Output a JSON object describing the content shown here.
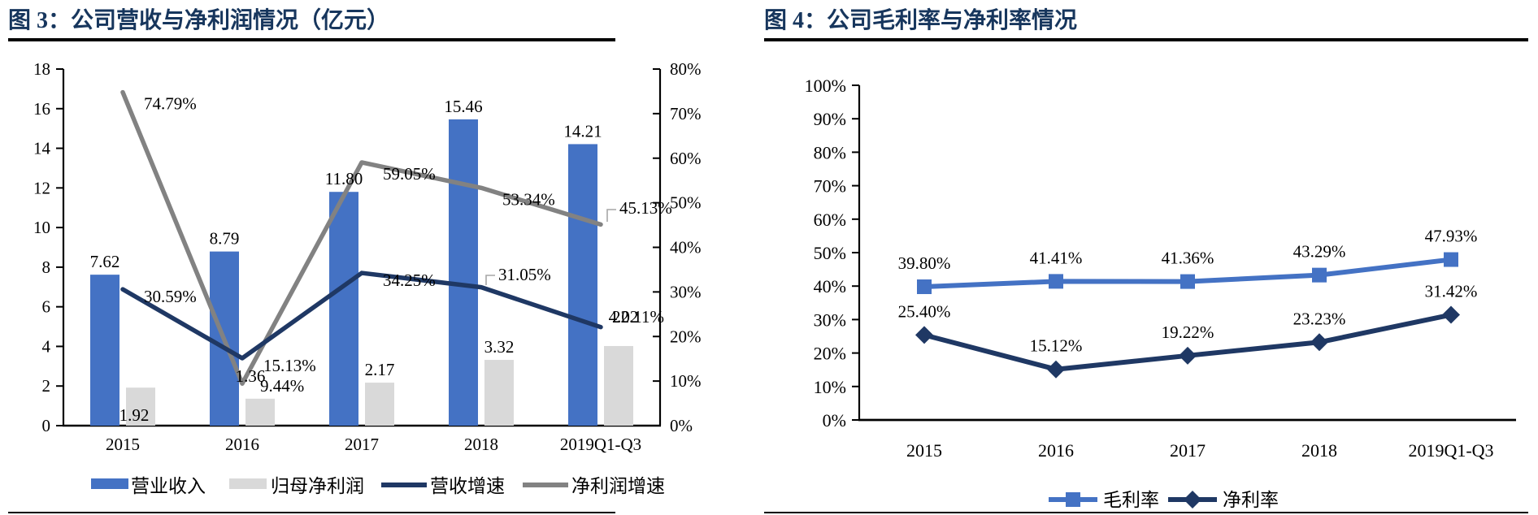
{
  "chart_data": [
    {
      "type": "bar",
      "title": "图 3：公司营收与净利润情况（亿元）",
      "categories": [
        "2015",
        "2016",
        "2017",
        "2018",
        "2019Q1-Q3"
      ],
      "bar_series": [
        {
          "name": "营业收入",
          "color": "#4472C4",
          "values": [
            7.62,
            8.79,
            11.8,
            15.46,
            14.21
          ],
          "labels": [
            "7.62",
            "8.79",
            "11.80",
            "15.46",
            "14.21"
          ]
        },
        {
          "name": "归母净利润",
          "color": "#D9D9D9",
          "values": [
            1.92,
            1.36,
            2.17,
            3.32,
            4.02
          ],
          "labels": [
            "1.92",
            "1.36",
            "2.17",
            "3.32",
            "4.02"
          ]
        }
      ],
      "line_series": [
        {
          "name": "营收增速",
          "color": "#1F3864",
          "values": [
            30.59,
            15.13,
            34.25,
            31.05,
            22.11
          ],
          "labels": [
            "30.59%",
            "15.13%",
            "34.25%",
            "31.05%",
            "22.11%"
          ]
        },
        {
          "name": "净利润增速",
          "color": "#828282",
          "values": [
            74.79,
            9.44,
            59.05,
            53.34,
            45.13
          ],
          "labels": [
            "74.79%",
            "9.44%",
            "59.05%",
            "53.34%",
            "45.13%"
          ]
        }
      ],
      "left_axis": {
        "min": 0,
        "max": 18,
        "step": 2,
        "ticks": [
          "0",
          "2",
          "4",
          "6",
          "8",
          "10",
          "12",
          "14",
          "16",
          "18"
        ]
      },
      "right_axis": {
        "min": 0,
        "max": 80,
        "step": 10,
        "ticks": [
          "0%",
          "10%",
          "20%",
          "30%",
          "40%",
          "50%",
          "60%",
          "70%",
          "80%"
        ]
      },
      "grid": false,
      "legend_position": "bottom"
    },
    {
      "type": "line",
      "title": "图 4：公司毛利率与净利率情况",
      "categories": [
        "2015",
        "2016",
        "2017",
        "2018",
        "2019Q1-Q3"
      ],
      "series": [
        {
          "name": "毛利率",
          "color": "#4472C4",
          "marker": "square",
          "values": [
            39.8,
            41.41,
            41.36,
            43.29,
            47.93
          ],
          "labels": [
            "39.80%",
            "41.41%",
            "41.36%",
            "43.29%",
            "47.93%"
          ]
        },
        {
          "name": "净利率",
          "color": "#1F3864",
          "marker": "diamond",
          "values": [
            25.4,
            15.12,
            19.22,
            23.23,
            31.42
          ],
          "labels": [
            "25.40%",
            "15.12%",
            "19.22%",
            "23.23%",
            "31.42%"
          ]
        }
      ],
      "y_axis": {
        "min": 0,
        "max": 100,
        "step": 10,
        "ticks": [
          "0%",
          "10%",
          "20%",
          "30%",
          "40%",
          "50%",
          "60%",
          "70%",
          "80%",
          "90%",
          "100%"
        ]
      },
      "grid": false,
      "legend_position": "bottom"
    }
  ],
  "styles": {
    "title_color": "#17365D",
    "rule_color": "#000000",
    "label_color": "#000000",
    "leader_color": "#A6A6A6"
  }
}
